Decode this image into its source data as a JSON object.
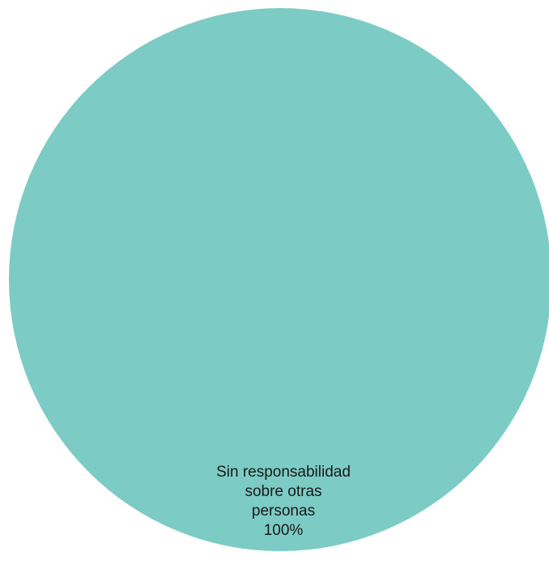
{
  "chart_data": {
    "type": "pie",
    "slices": [
      {
        "label_lines": [
          "Sin responsabilidad",
          "sobre otras",
          "personas"
        ],
        "value_label": "100%",
        "value": 100,
        "color": "#7ccbc4"
      }
    ]
  }
}
